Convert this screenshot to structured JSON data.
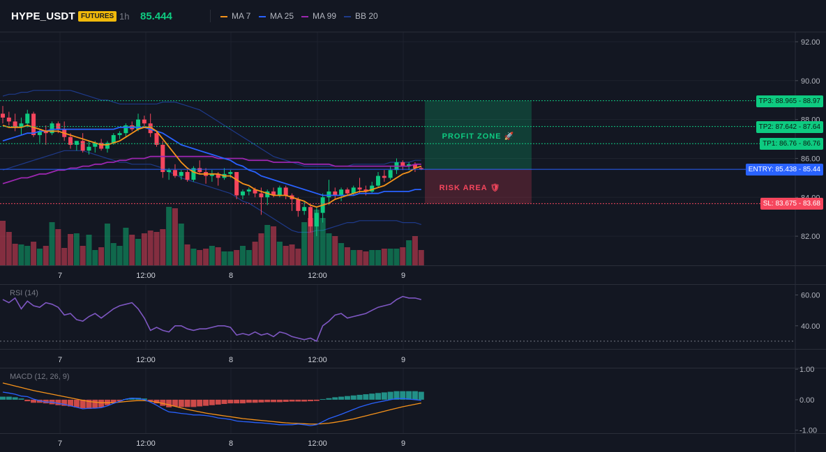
{
  "header": {
    "symbol": "HYPE_USDT",
    "badge": "FUTURES",
    "timeframe": "1h",
    "last_price": "85.444",
    "legend": [
      {
        "label": "MA 7",
        "color": "#f7931a"
      },
      {
        "label": "MA 25",
        "color": "#2962ff"
      },
      {
        "label": "MA 99",
        "color": "#9c27b0"
      },
      {
        "label": "BB 20",
        "color": "#1e3a8a"
      }
    ]
  },
  "price_axis": {
    "ticks": [
      "92.00",
      "90.00",
      "88.00",
      "86.00",
      "84.00",
      "82.00"
    ]
  },
  "rsi_axis": {
    "ticks": [
      "60.00",
      "40.00"
    ]
  },
  "macd_axis": {
    "ticks": [
      "1.00",
      "0.00",
      "-1.00"
    ]
  },
  "time_axis": {
    "ticks": [
      "7",
      "12:00",
      "8",
      "12:00",
      "9"
    ]
  },
  "levels": {
    "tp3": {
      "label": "TP3: 88.965 - 88.97",
      "value": 88.965
    },
    "tp2": {
      "label": "TP2: 87.642 - 87.64",
      "value": 87.642
    },
    "tp1": {
      "label": "TP1: 86.76 - 86.76",
      "value": 86.76
    },
    "entry": {
      "label": "ENTRY: 85.438 - 85.44",
      "value": 85.438
    },
    "sl": {
      "label": "SL: 83.675 - 83.68",
      "value": 83.675
    }
  },
  "zones": {
    "profit": "PROFIT ZONE 🚀",
    "risk": "RISK AREA 🛡"
  },
  "indicators": {
    "rsi_label": "RSI (14)",
    "macd_label": "MACD (12, 26, 9)"
  },
  "colors": {
    "up": "#0ecb81",
    "down": "#f6465d",
    "background": "#131722",
    "grid": "#1e222d",
    "tp": "#0ecb81",
    "entry": "#2962ff",
    "sl": "#f6465d",
    "rsi": "#7e57c2"
  },
  "chart_data": {
    "type": "candlestick",
    "candles_ohlc": [
      [
        88.3,
        88.7,
        87.8,
        88.1
      ],
      [
        88.1,
        88.4,
        87.7,
        87.9
      ],
      [
        87.9,
        88.3,
        87.4,
        87.6
      ],
      [
        87.6,
        88.1,
        87.2,
        87.8
      ],
      [
        87.8,
        88.5,
        87.6,
        88.3
      ],
      [
        88.3,
        88.4,
        87.1,
        87.2
      ],
      [
        87.2,
        87.5,
        86.8,
        87.4
      ],
      [
        87.4,
        87.7,
        86.7,
        87.3
      ],
      [
        87.3,
        87.9,
        87.2,
        87.8
      ],
      [
        87.8,
        87.9,
        87.3,
        87.5
      ],
      [
        87.5,
        87.9,
        86.9,
        87.1
      ],
      [
        87.1,
        87.3,
        86.5,
        86.7
      ],
      [
        86.7,
        86.9,
        86.4,
        86.9
      ],
      [
        86.9,
        87.3,
        86.3,
        86.4
      ],
      [
        86.4,
        86.9,
        86.2,
        86.6
      ],
      [
        86.6,
        86.9,
        86.3,
        86.8
      ],
      [
        86.8,
        87.0,
        86.4,
        86.5
      ],
      [
        86.5,
        86.9,
        86.3,
        86.8
      ],
      [
        86.8,
        87.3,
        86.7,
        87.2
      ],
      [
        87.2,
        87.4,
        87.0,
        87.3
      ],
      [
        87.3,
        87.8,
        87.1,
        87.7
      ],
      [
        87.7,
        87.9,
        87.4,
        87.5
      ],
      [
        87.5,
        88.3,
        87.4,
        88.0
      ],
      [
        88.0,
        88.2,
        87.6,
        87.8
      ],
      [
        87.8,
        88.3,
        87.1,
        87.3
      ],
      [
        87.3,
        87.4,
        86.6,
        86.7
      ],
      [
        86.7,
        86.9,
        85.0,
        85.3
      ],
      [
        85.3,
        85.5,
        84.9,
        85.4
      ],
      [
        85.4,
        85.7,
        85.0,
        85.1
      ],
      [
        85.1,
        85.4,
        84.9,
        85.3
      ],
      [
        85.3,
        85.4,
        84.8,
        84.9
      ],
      [
        84.9,
        85.6,
        84.8,
        85.5
      ],
      [
        85.5,
        85.9,
        85.2,
        85.3
      ],
      [
        85.3,
        85.5,
        84.7,
        85.1
      ],
      [
        85.1,
        85.4,
        84.8,
        85.2
      ],
      [
        85.2,
        85.3,
        84.6,
        85.0
      ],
      [
        85.0,
        85.5,
        84.9,
        85.2
      ],
      [
        85.2,
        85.4,
        85.0,
        85.3
      ],
      [
        85.3,
        85.3,
        83.9,
        84.1
      ],
      [
        84.1,
        84.4,
        83.9,
        84.3
      ],
      [
        84.3,
        84.5,
        84.1,
        84.4
      ],
      [
        84.4,
        84.5,
        84.0,
        84.2
      ],
      [
        84.2,
        84.5,
        83.1,
        84.0
      ],
      [
        84.0,
        84.4,
        83.6,
        84.3
      ],
      [
        84.3,
        84.5,
        84.0,
        84.1
      ],
      [
        84.1,
        84.6,
        84.0,
        84.5
      ],
      [
        84.5,
        84.6,
        83.9,
        84.1
      ],
      [
        84.1,
        84.2,
        83.3,
        83.9
      ],
      [
        83.9,
        84.0,
        83.0,
        83.3
      ],
      [
        83.3,
        83.8,
        83.1,
        83.5
      ],
      [
        83.5,
        83.6,
        82.2,
        82.5
      ],
      [
        82.5,
        83.5,
        82.0,
        83.2
      ],
      [
        83.2,
        84.2,
        82.7,
        84.0
      ],
      [
        84.0,
        84.9,
        83.6,
        84.3
      ],
      [
        84.3,
        84.5,
        83.9,
        84.1
      ],
      [
        84.1,
        84.5,
        83.8,
        84.4
      ],
      [
        84.4,
        84.5,
        84.1,
        84.2
      ],
      [
        84.2,
        84.6,
        84.1,
        84.5
      ],
      [
        84.5,
        85.0,
        84.2,
        84.4
      ],
      [
        84.4,
        84.6,
        84.1,
        84.3
      ],
      [
        84.3,
        84.8,
        84.2,
        84.6
      ],
      [
        84.6,
        85.3,
        84.5,
        85.1
      ],
      [
        85.1,
        85.4,
        84.8,
        85.0
      ],
      [
        85.0,
        85.6,
        84.9,
        85.4
      ],
      [
        85.4,
        86.0,
        85.2,
        85.8
      ],
      [
        85.8,
        85.9,
        85.4,
        85.6
      ],
      [
        85.6,
        85.8,
        85.4,
        85.7
      ],
      [
        85.7,
        85.8,
        85.3,
        85.5
      ],
      [
        85.5,
        85.6,
        85.4,
        85.44
      ]
    ],
    "volume": [
      64,
      48,
      31,
      30,
      28,
      34,
      24,
      28,
      62,
      52,
      25,
      45,
      46,
      28,
      44,
      22,
      26,
      60,
      32,
      28,
      54,
      44,
      38,
      46,
      50,
      48,
      52,
      84,
      82,
      60,
      30,
      24,
      22,
      24,
      28,
      26,
      20,
      20,
      22,
      28,
      22,
      34,
      46,
      58,
      56,
      34,
      28,
      30,
      24,
      62,
      68,
      80,
      68,
      46,
      42,
      32,
      26,
      22,
      22,
      20,
      22,
      22,
      24,
      24,
      24,
      26,
      36,
      42,
      22
    ],
    "ma7": [
      87.7,
      87.6,
      87.6,
      87.6,
      87.7,
      87.6,
      87.5,
      87.4,
      87.4,
      87.4,
      87.3,
      87.2,
      87.1,
      87.0,
      86.9,
      86.8,
      86.7,
      86.7,
      86.8,
      86.9,
      87.1,
      87.3,
      87.5,
      87.6,
      87.6,
      87.4,
      87.0,
      86.6,
      86.2,
      85.8,
      85.5,
      85.3,
      85.2,
      85.2,
      85.2,
      85.2,
      85.1,
      85.1,
      84.9,
      84.7,
      84.6,
      84.4,
      84.3,
      84.2,
      84.1,
      84.1,
      84.1,
      84.0,
      83.9,
      83.8,
      83.6,
      83.5,
      83.6,
      83.7,
      83.9,
      84.0,
      84.1,
      84.2,
      84.3,
      84.3,
      84.4,
      84.5,
      84.6,
      84.8,
      85.0,
      85.2,
      85.3,
      85.5,
      85.6
    ],
    "ma25": [
      86.9,
      87.0,
      87.1,
      87.2,
      87.3,
      87.3,
      87.4,
      87.4,
      87.5,
      87.5,
      87.5,
      87.5,
      87.5,
      87.5,
      87.5,
      87.5,
      87.5,
      87.5,
      87.5,
      87.6,
      87.6,
      87.6,
      87.6,
      87.6,
      87.5,
      87.4,
      87.3,
      87.1,
      86.9,
      86.7,
      86.6,
      86.5,
      86.4,
      86.3,
      86.2,
      86.1,
      86.0,
      85.9,
      85.7,
      85.6,
      85.4,
      85.3,
      85.1,
      85.0,
      84.9,
      84.8,
      84.7,
      84.6,
      84.5,
      84.4,
      84.3,
      84.2,
      84.1,
      84.1,
      84.1,
      84.1,
      84.1,
      84.1,
      84.2,
      84.2,
      84.2,
      84.2,
      84.3,
      84.3,
      84.3,
      84.3,
      84.3,
      84.4,
      84.4
    ],
    "ma99": [
      84.7,
      84.8,
      84.9,
      85.0,
      85.0,
      85.1,
      85.2,
      85.2,
      85.3,
      85.4,
      85.4,
      85.5,
      85.5,
      85.6,
      85.6,
      85.7,
      85.7,
      85.8,
      85.8,
      85.9,
      85.9,
      86.0,
      86.0,
      86.0,
      86.1,
      86.1,
      86.1,
      86.1,
      86.1,
      86.1,
      86.1,
      86.1,
      86.1,
      86.1,
      86.1,
      86.0,
      86.0,
      86.0,
      86.0,
      86.0,
      85.9,
      85.9,
      85.9,
      85.9,
      85.8,
      85.8,
      85.8,
      85.8,
      85.8,
      85.7,
      85.7,
      85.7,
      85.7,
      85.7,
      85.6,
      85.6,
      85.6,
      85.6,
      85.6,
      85.6,
      85.6,
      85.6,
      85.6,
      85.6,
      85.6,
      85.6,
      85.6,
      85.7,
      85.7
    ],
    "bb_upper": [
      89.2,
      89.3,
      89.3,
      89.4,
      89.4,
      89.5,
      89.5,
      89.5,
      89.5,
      89.5,
      89.5,
      89.5,
      89.4,
      89.3,
      89.2,
      89.1,
      89.0,
      89.0,
      88.9,
      88.8,
      88.8,
      88.8,
      88.8,
      88.8,
      88.8,
      88.8,
      88.9,
      88.9,
      88.9,
      88.8,
      88.7,
      88.6,
      88.5,
      88.3,
      88.1,
      87.9,
      87.7,
      87.5,
      87.3,
      87.1,
      86.9,
      86.7,
      86.5,
      86.3,
      86.1,
      86.0,
      85.9,
      85.8,
      85.7,
      85.6,
      85.6,
      85.6,
      85.6,
      85.6,
      85.6,
      85.6,
      85.6,
      85.7,
      85.7,
      85.7,
      85.7,
      85.7,
      85.7,
      85.8,
      85.8,
      85.8,
      85.8,
      85.9,
      85.9
    ],
    "bb_lower": [
      85.4,
      85.5,
      85.6,
      85.7,
      85.8,
      85.9,
      86.0,
      86.1,
      86.2,
      86.3,
      86.4,
      86.4,
      86.4,
      86.4,
      86.3,
      86.2,
      86.1,
      86.0,
      85.9,
      85.8,
      85.8,
      85.7,
      85.7,
      85.7,
      85.7,
      85.6,
      85.5,
      85.3,
      85.2,
      85.0,
      84.9,
      84.8,
      84.7,
      84.6,
      84.5,
      84.4,
      84.3,
      84.2,
      84.0,
      83.8,
      83.7,
      83.5,
      83.3,
      83.1,
      82.9,
      82.7,
      82.5,
      82.3,
      82.2,
      82.2,
      82.2,
      82.3,
      82.3,
      82.4,
      82.5,
      82.6,
      82.7,
      82.7,
      82.8,
      82.8,
      82.8,
      82.8,
      82.8,
      82.8,
      82.8,
      82.7,
      82.7,
      82.7,
      82.6
    ],
    "rsi": [
      57,
      55,
      58,
      51,
      56,
      53,
      52,
      55,
      54,
      52,
      47,
      48,
      44,
      43,
      46,
      48,
      45,
      48,
      51,
      53,
      54,
      55,
      51,
      45,
      37,
      39,
      37,
      36,
      40,
      40,
      38,
      37,
      38,
      38,
      39,
      40,
      40,
      39,
      34,
      35,
      34,
      36,
      34,
      35,
      33,
      36,
      35,
      33,
      32,
      31,
      32,
      30,
      40,
      43,
      47,
      48,
      45,
      46,
      47,
      48,
      50,
      52,
      53,
      54,
      57,
      59,
      58,
      58,
      57
    ],
    "macd": [
      0.25,
      0.22,
      0.18,
      0.12,
      0.1,
      0.02,
      -0.03,
      -0.08,
      -0.08,
      -0.12,
      -0.15,
      -0.2,
      -0.25,
      -0.3,
      -0.28,
      -0.28,
      -0.26,
      -0.2,
      -0.12,
      -0.05,
      0.02,
      0.05,
      0.04,
      0.0,
      -0.08,
      -0.18,
      -0.3,
      -0.4,
      -0.42,
      -0.45,
      -0.47,
      -0.5,
      -0.5,
      -0.52,
      -0.55,
      -0.6,
      -0.62,
      -0.65,
      -0.7,
      -0.72,
      -0.73,
      -0.75,
      -0.76,
      -0.78,
      -0.8,
      -0.82,
      -0.82,
      -0.82,
      -0.8,
      -0.82,
      -0.85,
      -0.82,
      -0.72,
      -0.62,
      -0.55,
      -0.48,
      -0.4,
      -0.32,
      -0.24,
      -0.18,
      -0.12,
      -0.08,
      -0.04,
      0.0,
      0.04,
      0.04,
      0.02,
      0.0,
      -0.02
    ],
    "signal": [
      0.55,
      0.5,
      0.45,
      0.4,
      0.35,
      0.3,
      0.26,
      0.22,
      0.18,
      0.14,
      0.1,
      0.06,
      0.02,
      -0.02,
      -0.06,
      -0.08,
      -0.1,
      -0.1,
      -0.1,
      -0.08,
      -0.06,
      -0.04,
      -0.03,
      -0.03,
      -0.05,
      -0.08,
      -0.12,
      -0.17,
      -0.22,
      -0.27,
      -0.32,
      -0.36,
      -0.4,
      -0.44,
      -0.47,
      -0.5,
      -0.53,
      -0.56,
      -0.59,
      -0.62,
      -0.64,
      -0.66,
      -0.68,
      -0.7,
      -0.72,
      -0.74,
      -0.76,
      -0.77,
      -0.78,
      -0.79,
      -0.8,
      -0.8,
      -0.79,
      -0.77,
      -0.74,
      -0.71,
      -0.67,
      -0.63,
      -0.58,
      -0.53,
      -0.48,
      -0.43,
      -0.38,
      -0.33,
      -0.28,
      -0.23,
      -0.19,
      -0.15,
      -0.11
    ],
    "hist": [
      0.1,
      0.1,
      0.08,
      0.04,
      -0.05,
      -0.1,
      -0.1,
      -0.12,
      -0.15,
      -0.18,
      -0.2,
      -0.22,
      -0.25,
      -0.28,
      -0.3,
      -0.28,
      -0.25,
      -0.18,
      -0.1,
      -0.05,
      0.02,
      0.06,
      0.06,
      0.04,
      -0.04,
      -0.12,
      -0.2,
      -0.25,
      -0.22,
      -0.24,
      -0.24,
      -0.24,
      -0.22,
      -0.2,
      -0.18,
      -0.16,
      -0.14,
      -0.12,
      -0.12,
      -0.12,
      -0.1,
      -0.1,
      -0.09,
      -0.08,
      -0.08,
      -0.08,
      -0.07,
      -0.06,
      -0.06,
      -0.06,
      -0.05,
      -0.04,
      0.02,
      0.05,
      0.08,
      0.1,
      0.12,
      0.14,
      0.16,
      0.18,
      0.2,
      0.22,
      0.24,
      0.26,
      0.28,
      0.28,
      0.28,
      0.28,
      0.26
    ],
    "price_range": [
      80.5,
      92.5
    ],
    "rsi_range": [
      25,
      67
    ],
    "macd_range": [
      -1.1,
      1.05
    ]
  }
}
